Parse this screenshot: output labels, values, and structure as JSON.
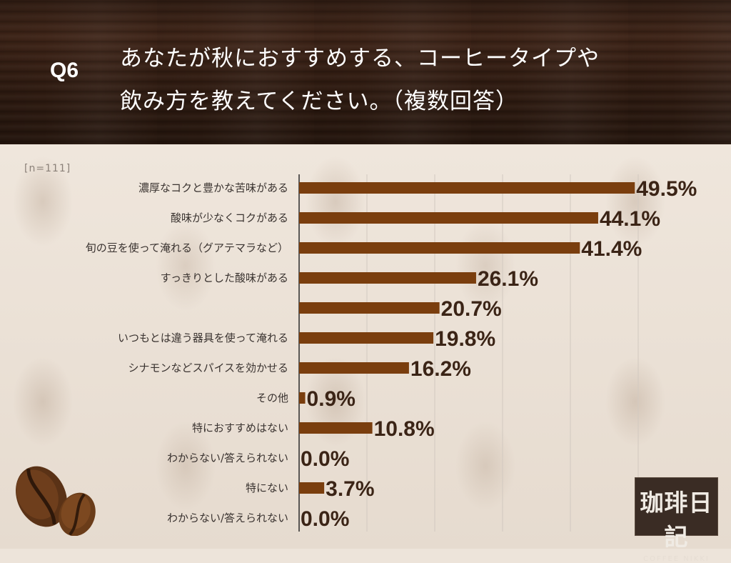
{
  "header": {
    "question_number": "Q6",
    "title_line1": "あなたが秋におすすめする、コーヒータイプや",
    "title_line2": "飲み方を教えてください。（複数回答）"
  },
  "sample_label": "[n=111]",
  "logo": {
    "main": "珈琲日記",
    "sub": "COFFEE NIKKI"
  },
  "colors": {
    "bar": "#7a3e0e",
    "value_text": "#3b2416",
    "grid": "#d2c9c0",
    "axis": "#2a2a2a"
  },
  "chart_data": {
    "type": "bar",
    "orientation": "horizontal",
    "categories": [
      "濃厚なコクと豊かな苦味がある",
      "酸味が少なくコクがある",
      "旬の豆を使って淹れる（グアテマラなど）",
      "すっきりとした酸味がある",
      "",
      "いつもとは違う器具を使って淹れる",
      "シナモンなどスパイスを効かせる",
      "その他",
      "特におすすめはない",
      "わからない/答えられない",
      "特にない",
      "わからない/答えられない"
    ],
    "values": [
      49.5,
      44.1,
      41.4,
      26.1,
      20.7,
      19.8,
      16.2,
      0.9,
      10.8,
      0.0,
      3.7,
      0.0
    ],
    "value_labels": [
      "49.5%",
      "44.1%",
      "41.4%",
      "26.1%",
      "20.7%",
      "19.8%",
      "16.2%",
      "0.9%",
      "10.8%",
      "0.0%",
      "3.7%",
      "0.0%"
    ],
    "xlim": [
      0,
      50
    ],
    "grid": true,
    "legend": "none"
  }
}
